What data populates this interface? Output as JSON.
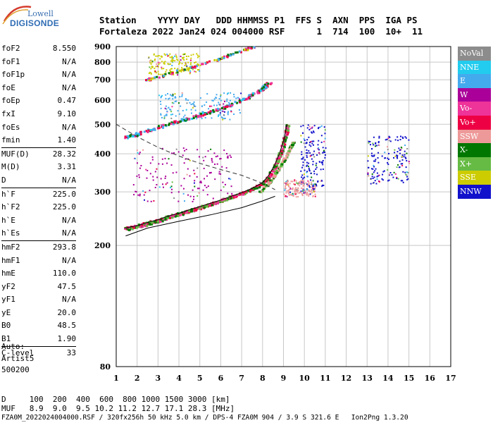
{
  "logo": {
    "line1": "Lowell",
    "line2": "DIGISONDE"
  },
  "header": {
    "row1": "Station    YYYY DAY   DDD HHMMSS P1  FFS S  AXN  PPS  IGA PS",
    "row2": "Fortaleza 2022 Jan24 024 004000 RSF      1  714  100  10+  11"
  },
  "params": [
    {
      "name": "foF2",
      "value": "8.550"
    },
    {
      "name": "foF1",
      "value": "N/A"
    },
    {
      "name": "foF1p",
      "value": "N/A"
    },
    {
      "name": "foE",
      "value": "N/A"
    },
    {
      "name": "foEp",
      "value": "0.47"
    },
    {
      "name": "fxI",
      "value": "9.10"
    },
    {
      "name": "foEs",
      "value": "N/A"
    },
    {
      "name": "fmin",
      "value": "1.40"
    },
    {
      "name": "MUF(D)",
      "value": "28.32",
      "sep": true
    },
    {
      "name": "M(D)",
      "value": "3.31"
    },
    {
      "name": "D",
      "value": "N/A"
    },
    {
      "name": "h`F",
      "value": "225.0",
      "sep": true
    },
    {
      "name": "h`F2",
      "value": "225.0"
    },
    {
      "name": "h`E",
      "value": "N/A"
    },
    {
      "name": "h`Es",
      "value": "N/A"
    },
    {
      "name": "hmF2",
      "value": "293.8",
      "sep": true
    },
    {
      "name": "hmF1",
      "value": "N/A"
    },
    {
      "name": "hmE",
      "value": "110.0"
    },
    {
      "name": "yF2",
      "value": "47.5"
    },
    {
      "name": "yF1",
      "value": "N/A"
    },
    {
      "name": "yE",
      "value": "20.0"
    },
    {
      "name": "B0",
      "value": "48.5"
    },
    {
      "name": "B1",
      "value": "1.90"
    },
    {
      "name": "C-level",
      "value": "33",
      "sep": true
    }
  ],
  "auto": {
    "label": "Auto:",
    "program": "Artist5",
    "code": "500200"
  },
  "legend": [
    {
      "label": "NoVal",
      "color": "#8c8c8c"
    },
    {
      "label": "NNE",
      "color": "#22ccee"
    },
    {
      "label": "E",
      "color": "#44aaee"
    },
    {
      "label": "W",
      "color": "#aa0099"
    },
    {
      "label": "Vo-",
      "color": "#ee3399"
    },
    {
      "label": "Vo+",
      "color": "#ee0044"
    },
    {
      "label": "SSW",
      "color": "#ee9999"
    },
    {
      "label": "X-",
      "color": "#007700"
    },
    {
      "label": "X+",
      "color": "#66bb44"
    },
    {
      "label": "SSE",
      "color": "#cccc00"
    },
    {
      "label": "NNW",
      "color": "#1111cc"
    }
  ],
  "bottom": {
    "line1": "D     100  200  400  600  800 1000 1500 3000 [km]",
    "line2": "MUF   8.9  9.0  9.5 10.2 11.2 12.7 17.1 28.3 [MHz]",
    "line3": "FZA0M_2022024004000.RSF / 320fx256h 50 kHz 5.0 km / DPS-4 FZA0M 904 / 3.9 S 321.6 E   Ion2Png 1.3.20"
  },
  "chart_data": {
    "type": "scatter",
    "xlim": [
      1,
      17
    ],
    "ylim": [
      80,
      900
    ],
    "x_ticks": [
      "1",
      "2",
      "3",
      "4",
      "5",
      "6",
      "7",
      "8",
      "9",
      "10",
      "11",
      "12",
      "13",
      "14",
      "15",
      "16",
      "17"
    ],
    "y_ticks": [
      "80",
      "200",
      "300",
      "400",
      "500",
      "600",
      "700",
      "800",
      "900"
    ],
    "y_tick_values": [
      80,
      200,
      300,
      400,
      500,
      600,
      700,
      800,
      900
    ],
    "y_scale": "log",
    "grid": "on",
    "o_trace": [
      [
        1.4,
        228
      ],
      [
        2.0,
        232
      ],
      [
        2.5,
        238
      ],
      [
        3.0,
        243
      ],
      [
        3.5,
        250
      ],
      [
        4.0,
        255
      ],
      [
        4.5,
        262
      ],
      [
        5.0,
        268
      ],
      [
        5.5,
        275
      ],
      [
        6.0,
        282
      ],
      [
        6.5,
        290
      ],
      [
        7.0,
        298
      ],
      [
        7.5,
        308
      ],
      [
        8.0,
        322
      ],
      [
        8.3,
        340
      ],
      [
        8.6,
        370
      ],
      [
        8.8,
        400
      ],
      [
        9.0,
        440
      ],
      [
        9.1,
        475
      ],
      [
        9.15,
        500
      ]
    ],
    "x_trace": [
      [
        7.8,
        300
      ],
      [
        8.2,
        318
      ],
      [
        8.5,
        340
      ],
      [
        8.8,
        365
      ],
      [
        9.1,
        395
      ],
      [
        9.3,
        420
      ],
      [
        9.45,
        440
      ]
    ],
    "second_hop": [
      [
        1.4,
        455
      ],
      [
        2.0,
        468
      ],
      [
        3.0,
        492
      ],
      [
        4.0,
        515
      ],
      [
        5.0,
        540
      ],
      [
        6.0,
        568
      ],
      [
        7.0,
        605
      ],
      [
        7.5,
        630
      ],
      [
        8.0,
        660
      ],
      [
        8.3,
        690
      ]
    ],
    "third_hop": [
      [
        2.3,
        700
      ],
      [
        3.0,
        720
      ],
      [
        4.0,
        755
      ],
      [
        5.0,
        790
      ],
      [
        6.0,
        830
      ],
      [
        7.0,
        880
      ],
      [
        7.5,
        900
      ]
    ],
    "model_profile": [
      [
        1.45,
        215
      ],
      [
        2.5,
        228
      ],
      [
        4.0,
        240
      ],
      [
        5.5,
        252
      ],
      [
        7.0,
        266
      ],
      [
        8.0,
        280
      ],
      [
        8.6,
        290
      ]
    ],
    "model_dashed": [
      [
        1.0,
        500
      ],
      [
        2.0,
        455
      ],
      [
        3.0,
        420
      ],
      [
        4.0,
        393
      ],
      [
        5.0,
        372
      ],
      [
        6.0,
        355
      ],
      [
        7.0,
        340
      ],
      [
        8.0,
        320
      ],
      [
        8.6,
        305
      ]
    ],
    "spread_clusters": [
      {
        "x": [
          9.8,
          11.0
        ],
        "y": [
          300,
          500
        ],
        "color": "#1111cc"
      },
      {
        "x": [
          13.0,
          15.0
        ],
        "y": [
          320,
          460
        ],
        "color": "#1111cc"
      },
      {
        "x": [
          9.0,
          10.5
        ],
        "y": [
          290,
          330
        ],
        "color": "#ee9999"
      },
      {
        "x": [
          1.8,
          6.5
        ],
        "y": [
          280,
          420
        ],
        "color": "#aa0099"
      },
      {
        "x": [
          2.5,
          5.0
        ],
        "y": [
          730,
          860
        ],
        "color": "#cccc00"
      },
      {
        "x": [
          3.0,
          7.0
        ],
        "y": [
          520,
          640
        ],
        "color": "#44aaee"
      }
    ]
  }
}
